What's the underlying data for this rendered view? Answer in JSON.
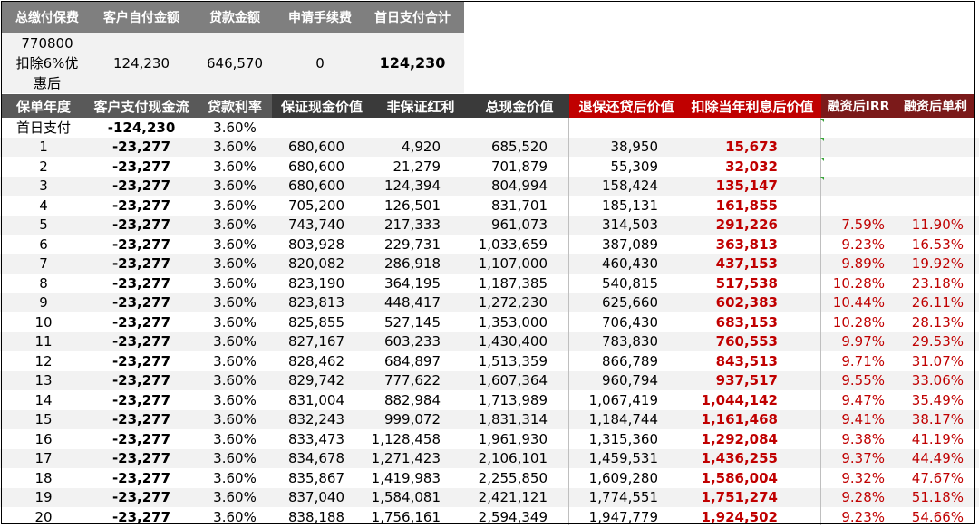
{
  "summary": {
    "headers": [
      "总缴付保费",
      "客户自付金额",
      "贷款金额",
      "申请手续费",
      "首日支付合计"
    ],
    "total_premium_line1": "770800",
    "total_premium_line2": "扣除6%优",
    "total_premium_line3": "惠后",
    "customer_self_pay": "124,230",
    "loan_amount": "646,570",
    "application_fee": "0",
    "day_one_total": "124,230"
  },
  "table": {
    "headers": [
      "保单年度",
      "客户支付现金流",
      "贷款利率",
      "保证现金价值",
      "非保证红利",
      "总现金价值",
      "退保还贷后价值",
      "扣除当年利息后价值",
      "融资后IRR",
      "融资后单利"
    ],
    "rows": [
      {
        "year": "首日支付",
        "cashflow": "-124,230",
        "rate": "3.60%",
        "guaranteed": "",
        "bonus": "",
        "total": "",
        "surrender": "",
        "after_interest": "",
        "irr": "",
        "simple": ""
      },
      {
        "year": "1",
        "cashflow": "-23,277",
        "rate": "3.60%",
        "guaranteed": "680,600",
        "bonus": "4,920",
        "total": "685,520",
        "surrender": "38,950",
        "after_interest": "15,673",
        "irr": "",
        "simple": ""
      },
      {
        "year": "2",
        "cashflow": "-23,277",
        "rate": "3.60%",
        "guaranteed": "680,600",
        "bonus": "21,279",
        "total": "701,879",
        "surrender": "55,309",
        "after_interest": "32,032",
        "irr": "",
        "simple": ""
      },
      {
        "year": "3",
        "cashflow": "-23,277",
        "rate": "3.60%",
        "guaranteed": "680,600",
        "bonus": "124,394",
        "total": "804,994",
        "surrender": "158,424",
        "after_interest": "135,147",
        "irr": "",
        "simple": ""
      },
      {
        "year": "4",
        "cashflow": "-23,277",
        "rate": "3.60%",
        "guaranteed": "705,200",
        "bonus": "126,501",
        "total": "831,701",
        "surrender": "185,131",
        "after_interest": "161,855",
        "irr": "",
        "simple": ""
      },
      {
        "year": "5",
        "cashflow": "-23,277",
        "rate": "3.60%",
        "guaranteed": "743,740",
        "bonus": "217,333",
        "total": "961,073",
        "surrender": "314,503",
        "after_interest": "291,226",
        "irr": "7.59%",
        "simple": "11.90%"
      },
      {
        "year": "6",
        "cashflow": "-23,277",
        "rate": "3.60%",
        "guaranteed": "803,928",
        "bonus": "229,731",
        "total": "1,033,659",
        "surrender": "387,089",
        "after_interest": "363,813",
        "irr": "9.23%",
        "simple": "16.53%"
      },
      {
        "year": "7",
        "cashflow": "-23,277",
        "rate": "3.60%",
        "guaranteed": "820,082",
        "bonus": "286,918",
        "total": "1,107,000",
        "surrender": "460,430",
        "after_interest": "437,153",
        "irr": "9.89%",
        "simple": "19.92%"
      },
      {
        "year": "8",
        "cashflow": "-23,277",
        "rate": "3.60%",
        "guaranteed": "823,190",
        "bonus": "364,195",
        "total": "1,187,385",
        "surrender": "540,815",
        "after_interest": "517,538",
        "irr": "10.28%",
        "simple": "23.18%"
      },
      {
        "year": "9",
        "cashflow": "-23,277",
        "rate": "3.60%",
        "guaranteed": "823,813",
        "bonus": "448,417",
        "total": "1,272,230",
        "surrender": "625,660",
        "after_interest": "602,383",
        "irr": "10.44%",
        "simple": "26.11%"
      },
      {
        "year": "10",
        "cashflow": "-23,277",
        "rate": "3.60%",
        "guaranteed": "825,855",
        "bonus": "527,145",
        "total": "1,353,000",
        "surrender": "706,430",
        "after_interest": "683,153",
        "irr": "10.28%",
        "simple": "28.13%"
      },
      {
        "year": "11",
        "cashflow": "-23,277",
        "rate": "3.60%",
        "guaranteed": "827,167",
        "bonus": "603,233",
        "total": "1,430,400",
        "surrender": "783,830",
        "after_interest": "760,553",
        "irr": "9.97%",
        "simple": "29.53%"
      },
      {
        "year": "12",
        "cashflow": "-23,277",
        "rate": "3.60%",
        "guaranteed": "828,462",
        "bonus": "684,897",
        "total": "1,513,359",
        "surrender": "866,789",
        "after_interest": "843,513",
        "irr": "9.71%",
        "simple": "31.07%"
      },
      {
        "year": "13",
        "cashflow": "-23,277",
        "rate": "3.60%",
        "guaranteed": "829,742",
        "bonus": "777,622",
        "total": "1,607,364",
        "surrender": "960,794",
        "after_interest": "937,517",
        "irr": "9.55%",
        "simple": "33.06%"
      },
      {
        "year": "14",
        "cashflow": "-23,277",
        "rate": "3.60%",
        "guaranteed": "831,004",
        "bonus": "882,984",
        "total": "1,713,989",
        "surrender": "1,067,419",
        "after_interest": "1,044,142",
        "irr": "9.47%",
        "simple": "35.49%"
      },
      {
        "year": "15",
        "cashflow": "-23,277",
        "rate": "3.60%",
        "guaranteed": "832,243",
        "bonus": "999,072",
        "total": "1,831,314",
        "surrender": "1,184,744",
        "after_interest": "1,161,468",
        "irr": "9.41%",
        "simple": "38.17%"
      },
      {
        "year": "16",
        "cashflow": "-23,277",
        "rate": "3.60%",
        "guaranteed": "833,473",
        "bonus": "1,128,458",
        "total": "1,961,930",
        "surrender": "1,315,360",
        "after_interest": "1,292,084",
        "irr": "9.38%",
        "simple": "41.19%"
      },
      {
        "year": "17",
        "cashflow": "-23,277",
        "rate": "3.60%",
        "guaranteed": "834,678",
        "bonus": "1,271,423",
        "total": "2,106,101",
        "surrender": "1,459,531",
        "after_interest": "1,436,255",
        "irr": "9.37%",
        "simple": "44.49%"
      },
      {
        "year": "18",
        "cashflow": "-23,277",
        "rate": "3.60%",
        "guaranteed": "835,867",
        "bonus": "1,419,983",
        "total": "2,255,850",
        "surrender": "1,609,280",
        "after_interest": "1,586,004",
        "irr": "9.32%",
        "simple": "47.67%"
      },
      {
        "year": "19",
        "cashflow": "-23,277",
        "rate": "3.60%",
        "guaranteed": "837,040",
        "bonus": "1,584,081",
        "total": "2,421,121",
        "surrender": "1,774,551",
        "after_interest": "1,751,274",
        "irr": "9.28%",
        "simple": "51.18%"
      },
      {
        "year": "20",
        "cashflow": "-23,277",
        "rate": "3.60%",
        "guaranteed": "838,188",
        "bonus": "1,756,161",
        "total": "2,594,349",
        "surrender": "1,947,779",
        "after_interest": "1,924,502",
        "irr": "9.23%",
        "simple": "54.66%"
      }
    ]
  },
  "colors": {
    "header_gray": "#595959",
    "header_dark": "#3a3a3a",
    "header_red": "#c00000",
    "header_maroon": "#7b1a1a",
    "summary_header": "#7f7f7f",
    "value_red": "#c00000"
  }
}
